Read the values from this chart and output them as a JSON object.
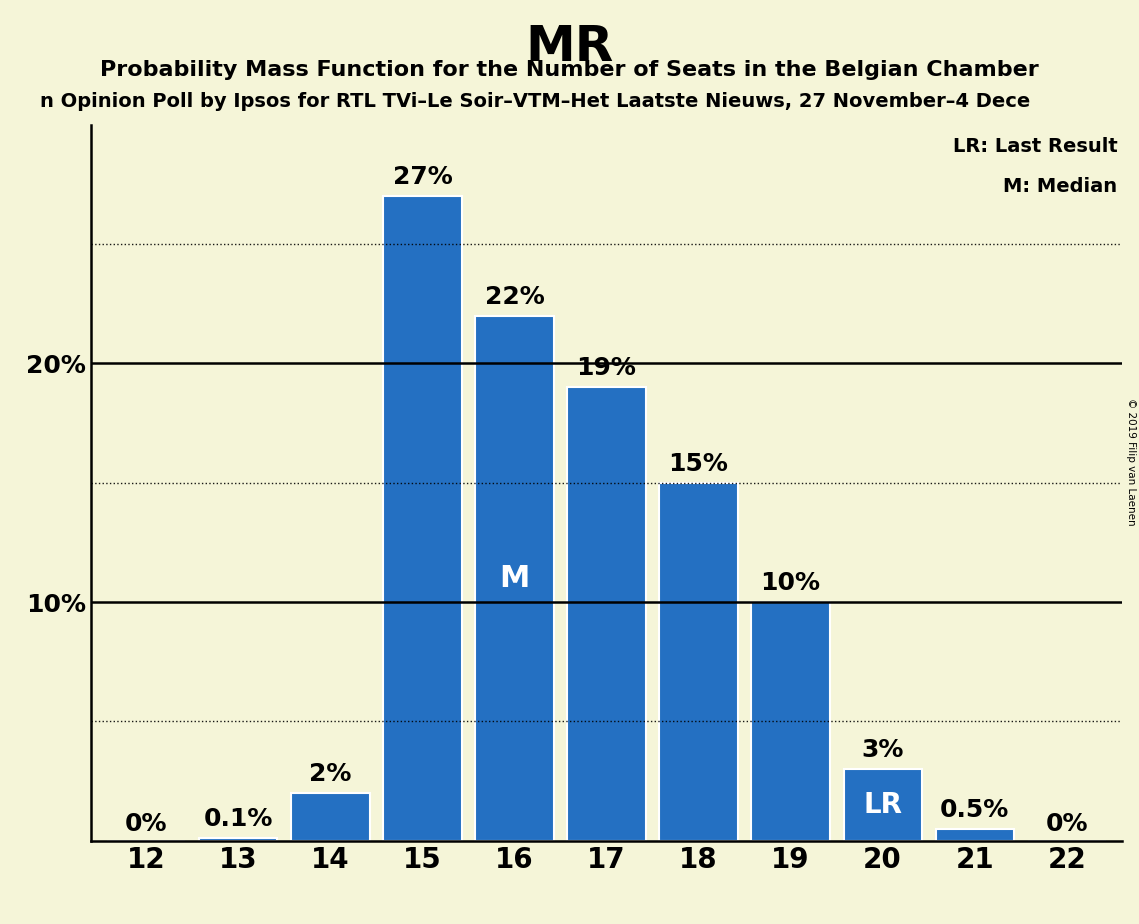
{
  "title": "MR",
  "subtitle": "Probability Mass Function for the Number of Seats in the Belgian Chamber",
  "subsubtitle": "n Opinion Poll by Ipsos for RTL TVi–Le Soir–VTM–Het Laatste Nieuws, 27 November–4 Dece",
  "copyright": "© 2019 Filip van Laenen",
  "categories": [
    12,
    13,
    14,
    15,
    16,
    17,
    18,
    19,
    20,
    21,
    22
  ],
  "values": [
    0.0,
    0.1,
    2.0,
    27.0,
    22.0,
    19.0,
    15.0,
    10.0,
    3.0,
    0.5,
    0.0
  ],
  "labels": [
    "0%",
    "0.1%",
    "2%",
    "27%",
    "22%",
    "19%",
    "15%",
    "10%",
    "3%",
    "0.5%",
    "0%"
  ],
  "bar_color": "#2470c2",
  "background_color": "#f5f5d8",
  "median_bar_index": 4,
  "lr_bar_index": 8,
  "median_label": "M",
  "lr_label": "LR",
  "yticks": [
    10,
    20
  ],
  "ytick_labels": [
    "10%",
    "20%"
  ],
  "ydotted_ticks": [
    5,
    15,
    25
  ],
  "ylim": [
    0,
    30
  ],
  "legend_lr": "LR: Last Result",
  "legend_m": "M: Median",
  "title_fontsize": 36,
  "subtitle_fontsize": 16,
  "subsubtitle_fontsize": 14,
  "bar_label_fontsize": 18,
  "ytick_fontsize": 18,
  "xtick_fontsize": 20,
  "inner_label_fontsize": 22,
  "legend_fontsize": 14
}
